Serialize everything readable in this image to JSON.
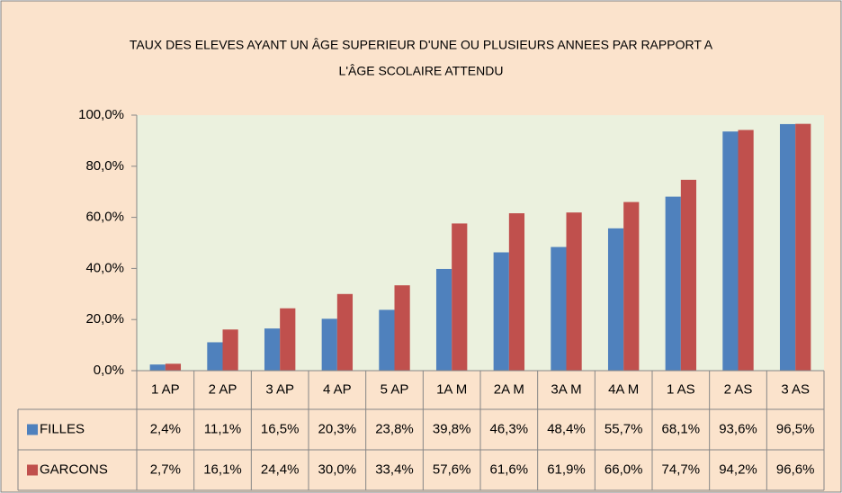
{
  "chart_data": {
    "type": "bar",
    "title_lines": [
      "TAUX DES ELEVES AYANT UN ÂGE SUPERIEUR D'UNE OU PLUSIEURS ANNEES PAR RAPPORT A",
      "L'ÂGE SCOLAIRE ATTENDU"
    ],
    "categories": [
      "1 AP",
      "2 AP",
      "3 AP",
      "4 AP",
      "5 AP",
      "1A M",
      "2A M",
      "3A M",
      "4A M",
      "1 AS",
      "2 AS",
      "3 AS"
    ],
    "series": [
      {
        "name": "FILLES",
        "color": "#4f81bd",
        "values": [
          2.4,
          11.1,
          16.5,
          20.3,
          23.8,
          39.8,
          46.3,
          48.4,
          55.7,
          68.1,
          93.6,
          96.5
        ],
        "value_labels": [
          "2,4%",
          "11,1%",
          "16,5%",
          "20,3%",
          "23,8%",
          "39,8%",
          "46,3%",
          "48,4%",
          "55,7%",
          "68,1%",
          "93,6%",
          "96,5%"
        ]
      },
      {
        "name": "GARCONS",
        "color": "#c0504d",
        "values": [
          2.7,
          16.1,
          24.4,
          30.0,
          33.4,
          57.6,
          61.6,
          61.9,
          66.0,
          74.7,
          94.2,
          96.6
        ],
        "value_labels": [
          "2,7%",
          "16,1%",
          "24,4%",
          "30,0%",
          "33,4%",
          "57,6%",
          "61,6%",
          "61,9%",
          "66,0%",
          "74,7%",
          "94,2%",
          "96,6%"
        ]
      }
    ],
    "ylim": [
      0,
      100
    ],
    "yticks": [
      {
        "value": 0,
        "label": "0,0%"
      },
      {
        "value": 20,
        "label": "20,0%"
      },
      {
        "value": 40,
        "label": "40,0%"
      },
      {
        "value": 60,
        "label": "60,0%"
      },
      {
        "value": 80,
        "label": "80,0%"
      },
      {
        "value": 100,
        "label": "100,0%"
      }
    ],
    "grid": false
  }
}
